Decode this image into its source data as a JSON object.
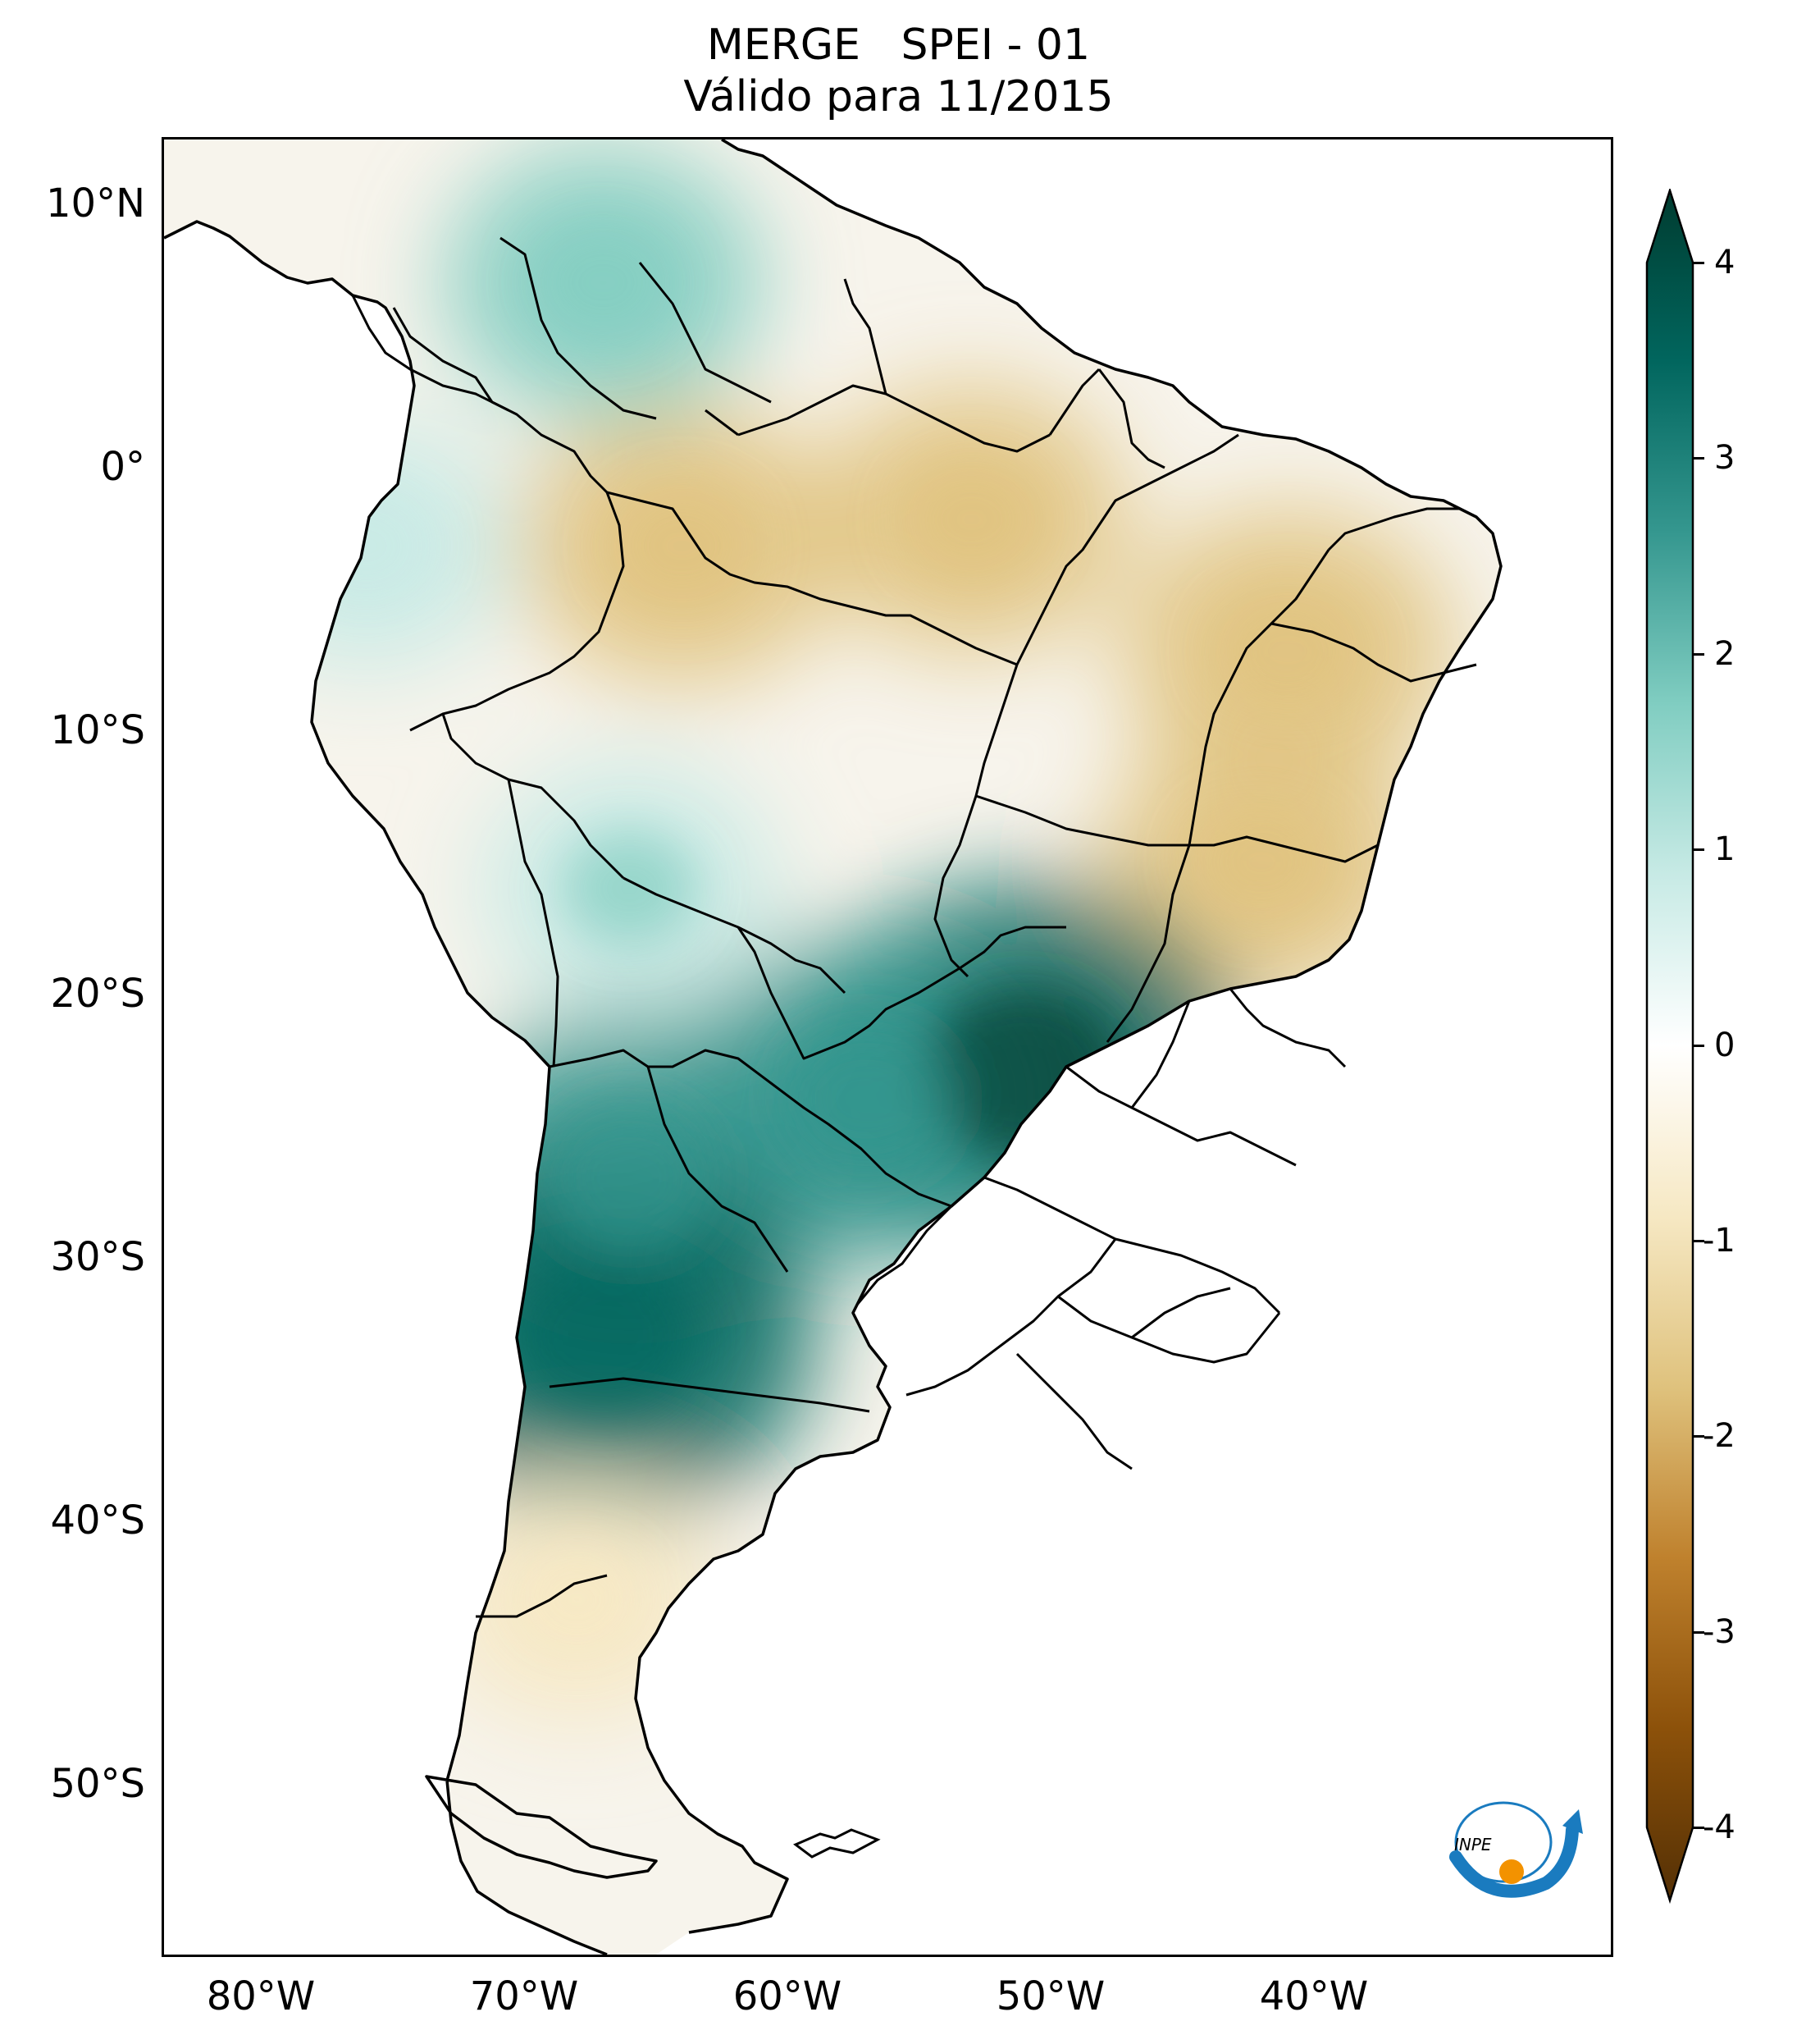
{
  "title": {
    "line1": "MERGE   SPEI - 01",
    "line2": "Válido para 11/2015"
  },
  "map": {
    "latitude_labels": [
      {
        "label": "10°N",
        "value": 10
      },
      {
        "label": "0°",
        "value": 0
      },
      {
        "label": "10°S",
        "value": -10
      },
      {
        "label": "20°S",
        "value": -20
      },
      {
        "label": "30°S",
        "value": -30
      },
      {
        "label": "40°S",
        "value": -40
      },
      {
        "label": "50°S",
        "value": -50
      }
    ],
    "longitude_labels": [
      {
        "label": "80°W",
        "value": -80
      },
      {
        "label": "70°W",
        "value": -70
      },
      {
        "label": "60°W",
        "value": -60
      },
      {
        "label": "50°W",
        "value": -50
      },
      {
        "label": "40°W",
        "value": -40
      }
    ],
    "extent": {
      "lon_min": -85,
      "lon_max": -30,
      "lat_min": -56,
      "lat_max": 13
    },
    "dry_color": "#d2a35a",
    "wet_color": "#127a6f",
    "regions": [
      {
        "name": "northern-amazon-dry",
        "lon": -64,
        "lat": -3,
        "value": -1.5
      },
      {
        "name": "amapa-para-dry",
        "lon": -53,
        "lat": -2,
        "value": -1.3
      },
      {
        "name": "northeast-brazil-dry",
        "lon": -41,
        "lat": -7,
        "value": -1.6
      },
      {
        "name": "bahia-minas-dry",
        "lon": -42,
        "lat": -15,
        "value": -1.4
      },
      {
        "name": "venezuela-wet",
        "lon": -67,
        "lat": 7,
        "value": 1.4
      },
      {
        "name": "ecuador-peru-wet",
        "lon": -76,
        "lat": -3,
        "value": 1.0
      },
      {
        "name": "bolivia-wet",
        "lon": -66,
        "lat": -16,
        "value": 1.1
      },
      {
        "name": "parana-sao-paulo-wet",
        "lon": -51,
        "lat": -23,
        "value": 3.2
      },
      {
        "name": "paraguay-wet",
        "lon": -57,
        "lat": -24,
        "value": 2.3
      },
      {
        "name": "northwest-argentina-wet",
        "lon": -66,
        "lat": -27,
        "value": 2.4
      },
      {
        "name": "central-argentina-wet",
        "lon": -67,
        "lat": -33,
        "value": 3.0
      },
      {
        "name": "patagonia-dry",
        "lon": -68,
        "lat": -43,
        "value": -1.0
      }
    ]
  },
  "colorbar": {
    "min": -4,
    "max": 4,
    "ticks": [
      "-4",
      "-3",
      "-2",
      "-1",
      "0",
      "1",
      "2",
      "3",
      "4"
    ],
    "colors": [
      "#543005",
      "#8c510a",
      "#bf812d",
      "#dfc27d",
      "#f6e8c3",
      "#ffffff",
      "#c7eae5",
      "#80cdc1",
      "#35978f",
      "#01665e",
      "#003c30"
    ]
  },
  "logo": {
    "text": "INPE"
  }
}
